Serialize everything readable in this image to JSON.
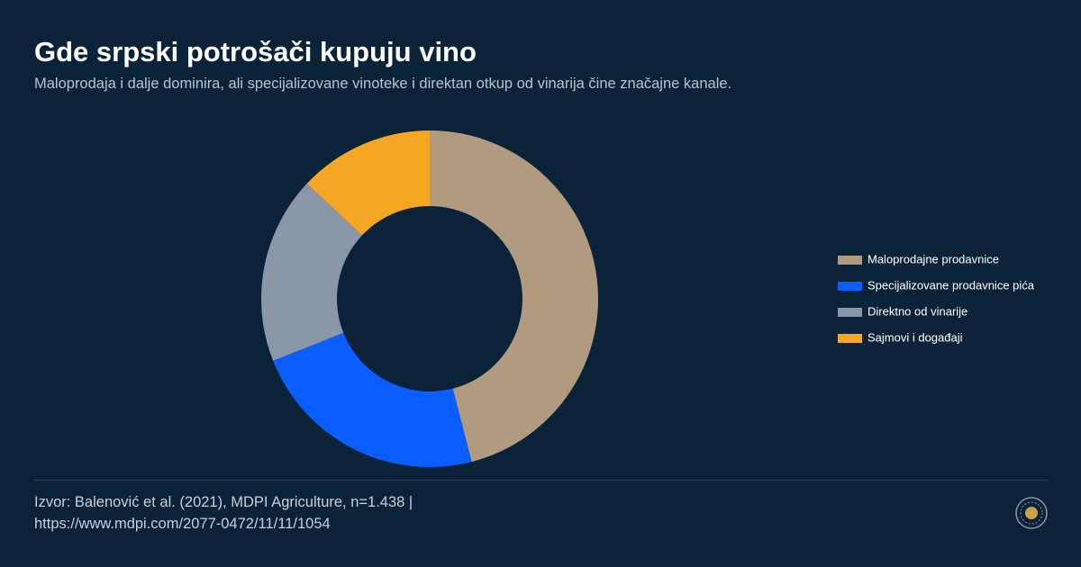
{
  "chart_data": {
    "type": "donut",
    "title": "Gde srpski potrošači kupuju vino",
    "subtitle": "Maloprodaja i dalje dominira, ali specijalizovane vinoteke i direktan otkup od vinarija čine značajne kanale.",
    "categories": [
      "Maloprodajne prodavnice",
      "Specijalizovane prodavnice pića",
      "Direktno od vinarije",
      "Sajmovi i događaji"
    ],
    "values": [
      46,
      23,
      18,
      13
    ],
    "colors": [
      "#b09a80",
      "#0a5eff",
      "#8a97a8",
      "#f5a623"
    ],
    "legend": "right",
    "source": "Izvor: Balenović et al. (2021), MDPI Agriculture, n=1.438 | https://www.mdpi.com/2077-0472/11/11/1054"
  }
}
